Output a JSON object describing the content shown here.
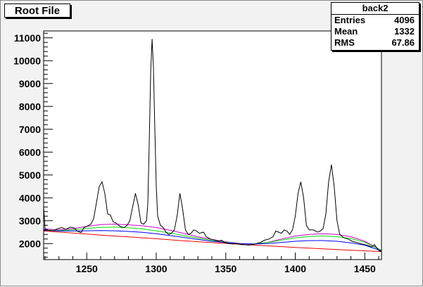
{
  "canvas_title": "Root File",
  "stats": {
    "name": "back2",
    "rows": [
      {
        "label": "Entries",
        "value": "4096"
      },
      {
        "label": "Mean",
        "value": "1332"
      },
      {
        "label": "RMS",
        "value": "67.86"
      }
    ]
  },
  "colors": {
    "background": "#f2f2f2",
    "plot_bg": "#ffffff",
    "spectrum": "#000000",
    "bkg_magenta": "#cc00cc",
    "bkg_green": "#00dd00",
    "bkg_blue": "#0000ff",
    "bkg_red": "#ee0000"
  },
  "chart_data": {
    "type": "line",
    "title": "",
    "xlabel": "",
    "ylabel": "",
    "xlim": [
      1219,
      1462
    ],
    "ylim": [
      1300,
      11300
    ],
    "x_ticks": [
      1250,
      1300,
      1350,
      1400,
      1450
    ],
    "x_tick_labels": [
      "1250",
      "1300",
      "1350",
      "1400",
      "1450"
    ],
    "y_ticks": [
      2000,
      3000,
      4000,
      5000,
      6000,
      7000,
      8000,
      9000,
      10000,
      11000
    ],
    "y_tick_labels": [
      "2000",
      "3000",
      "4000",
      "5000",
      "6000",
      "7000",
      "8000",
      "9000",
      "10000",
      "11000"
    ],
    "grid": false,
    "series": [
      {
        "key": "spectrum",
        "color": "#000000",
        "points": [
          [
            1219,
            3600
          ],
          [
            1220,
            2650
          ],
          [
            1222,
            2580
          ],
          [
            1226,
            2560
          ],
          [
            1229,
            2650
          ],
          [
            1232,
            2700
          ],
          [
            1235,
            2620
          ],
          [
            1238,
            2720
          ],
          [
            1241,
            2680
          ],
          [
            1243,
            2550
          ],
          [
            1246,
            2480
          ],
          [
            1248,
            2700
          ],
          [
            1250,
            2750
          ],
          [
            1253,
            2850
          ],
          [
            1255,
            3100
          ],
          [
            1257,
            3800
          ],
          [
            1259,
            4500
          ],
          [
            1261,
            4700
          ],
          [
            1263,
            4200
          ],
          [
            1265,
            3300
          ],
          [
            1267,
            3250
          ],
          [
            1269,
            2950
          ],
          [
            1271,
            2900
          ],
          [
            1274,
            2750
          ],
          [
            1277,
            2700
          ],
          [
            1279,
            2800
          ],
          [
            1281,
            3000
          ],
          [
            1283,
            3600
          ],
          [
            1285,
            4200
          ],
          [
            1287,
            3700
          ],
          [
            1289,
            2900
          ],
          [
            1291,
            2850
          ],
          [
            1293,
            3000
          ],
          [
            1294,
            3800
          ],
          [
            1295,
            6500
          ],
          [
            1296,
            9500
          ],
          [
            1297,
            10950
          ],
          [
            1298,
            9700
          ],
          [
            1299,
            7000
          ],
          [
            1300,
            4500
          ],
          [
            1301,
            3200
          ],
          [
            1303,
            2800
          ],
          [
            1305,
            2700
          ],
          [
            1307,
            2500
          ],
          [
            1309,
            2400
          ],
          [
            1311,
            2450
          ],
          [
            1313,
            2600
          ],
          [
            1315,
            3200
          ],
          [
            1317,
            4200
          ],
          [
            1319,
            3500
          ],
          [
            1321,
            2600
          ],
          [
            1323,
            2400
          ],
          [
            1325,
            2450
          ],
          [
            1327,
            2600
          ],
          [
            1329,
            2550
          ],
          [
            1331,
            2450
          ],
          [
            1334,
            2500
          ],
          [
            1336,
            2300
          ],
          [
            1339,
            2200
          ],
          [
            1342,
            2150
          ],
          [
            1345,
            2100
          ],
          [
            1347,
            2150
          ],
          [
            1349,
            2050
          ],
          [
            1352,
            2000
          ],
          [
            1355,
            1980
          ],
          [
            1358,
            2000
          ],
          [
            1361,
            1950
          ],
          [
            1364,
            1950
          ],
          [
            1366,
            1930
          ],
          [
            1369,
            1950
          ],
          [
            1372,
            2000
          ],
          [
            1375,
            2050
          ],
          [
            1378,
            2150
          ],
          [
            1381,
            2200
          ],
          [
            1384,
            2300
          ],
          [
            1386,
            2550
          ],
          [
            1388,
            2500
          ],
          [
            1390,
            2450
          ],
          [
            1392,
            2600
          ],
          [
            1394,
            2550
          ],
          [
            1396,
            2400
          ],
          [
            1398,
            2600
          ],
          [
            1400,
            3200
          ],
          [
            1402,
            4200
          ],
          [
            1404,
            4700
          ],
          [
            1406,
            4000
          ],
          [
            1408,
            2800
          ],
          [
            1410,
            2600
          ],
          [
            1413,
            2600
          ],
          [
            1416,
            2500
          ],
          [
            1418,
            2550
          ],
          [
            1420,
            2650
          ],
          [
            1422,
            3300
          ],
          [
            1424,
            4700
          ],
          [
            1426,
            5450
          ],
          [
            1428,
            4500
          ],
          [
            1430,
            3000
          ],
          [
            1432,
            2400
          ],
          [
            1435,
            2250
          ],
          [
            1438,
            2200
          ],
          [
            1441,
            2100
          ],
          [
            1444,
            2050
          ],
          [
            1447,
            2000
          ],
          [
            1450,
            1950
          ],
          [
            1453,
            1900
          ],
          [
            1455,
            1850
          ],
          [
            1457,
            1950
          ],
          [
            1460,
            1700
          ],
          [
            1462,
            1650
          ]
        ]
      },
      {
        "key": "bkg_magenta",
        "color": "#cc00cc",
        "points": [
          [
            1219,
            2650
          ],
          [
            1230,
            2600
          ],
          [
            1240,
            2650
          ],
          [
            1250,
            2750
          ],
          [
            1260,
            2830
          ],
          [
            1270,
            2850
          ],
          [
            1280,
            2820
          ],
          [
            1290,
            2780
          ],
          [
            1300,
            2700
          ],
          [
            1310,
            2580
          ],
          [
            1320,
            2440
          ],
          [
            1330,
            2300
          ],
          [
            1340,
            2180
          ],
          [
            1350,
            2080
          ],
          [
            1360,
            2000
          ],
          [
            1370,
            1980
          ],
          [
            1380,
            2050
          ],
          [
            1390,
            2200
          ],
          [
            1400,
            2330
          ],
          [
            1410,
            2400
          ],
          [
            1420,
            2430
          ],
          [
            1430,
            2400
          ],
          [
            1440,
            2300
          ],
          [
            1450,
            2100
          ],
          [
            1462,
            1700
          ]
        ]
      },
      {
        "key": "bkg_green",
        "color": "#00dd00",
        "points": [
          [
            1219,
            2600
          ],
          [
            1230,
            2570
          ],
          [
            1240,
            2600
          ],
          [
            1250,
            2660
          ],
          [
            1260,
            2710
          ],
          [
            1270,
            2720
          ],
          [
            1280,
            2690
          ],
          [
            1290,
            2640
          ],
          [
            1300,
            2560
          ],
          [
            1310,
            2460
          ],
          [
            1320,
            2350
          ],
          [
            1330,
            2240
          ],
          [
            1340,
            2140
          ],
          [
            1350,
            2060
          ],
          [
            1360,
            2000
          ],
          [
            1370,
            1980
          ],
          [
            1380,
            2040
          ],
          [
            1390,
            2150
          ],
          [
            1400,
            2250
          ],
          [
            1410,
            2310
          ],
          [
            1420,
            2330
          ],
          [
            1430,
            2300
          ],
          [
            1440,
            2220
          ],
          [
            1450,
            2060
          ],
          [
            1462,
            1700
          ]
        ]
      },
      {
        "key": "bkg_blue",
        "color": "#0000ff",
        "points": [
          [
            1219,
            2580
          ],
          [
            1230,
            2550
          ],
          [
            1240,
            2550
          ],
          [
            1250,
            2560
          ],
          [
            1260,
            2570
          ],
          [
            1270,
            2560
          ],
          [
            1280,
            2530
          ],
          [
            1290,
            2490
          ],
          [
            1300,
            2430
          ],
          [
            1310,
            2350
          ],
          [
            1320,
            2270
          ],
          [
            1330,
            2180
          ],
          [
            1340,
            2100
          ],
          [
            1350,
            2040
          ],
          [
            1360,
            2000
          ],
          [
            1370,
            1980
          ],
          [
            1380,
            2000
          ],
          [
            1390,
            2050
          ],
          [
            1400,
            2100
          ],
          [
            1410,
            2130
          ],
          [
            1420,
            2130
          ],
          [
            1430,
            2100
          ],
          [
            1440,
            2030
          ],
          [
            1450,
            1930
          ],
          [
            1462,
            1680
          ]
        ]
      },
      {
        "key": "bkg_red",
        "color": "#ee0000",
        "points": [
          [
            1219,
            2550
          ],
          [
            1240,
            2460
          ],
          [
            1260,
            2370
          ],
          [
            1280,
            2290
          ],
          [
            1300,
            2210
          ],
          [
            1320,
            2120
          ],
          [
            1340,
            2040
          ],
          [
            1360,
            1970
          ],
          [
            1380,
            1900
          ],
          [
            1400,
            1830
          ],
          [
            1420,
            1770
          ],
          [
            1440,
            1710
          ],
          [
            1462,
            1650
          ]
        ]
      }
    ]
  }
}
